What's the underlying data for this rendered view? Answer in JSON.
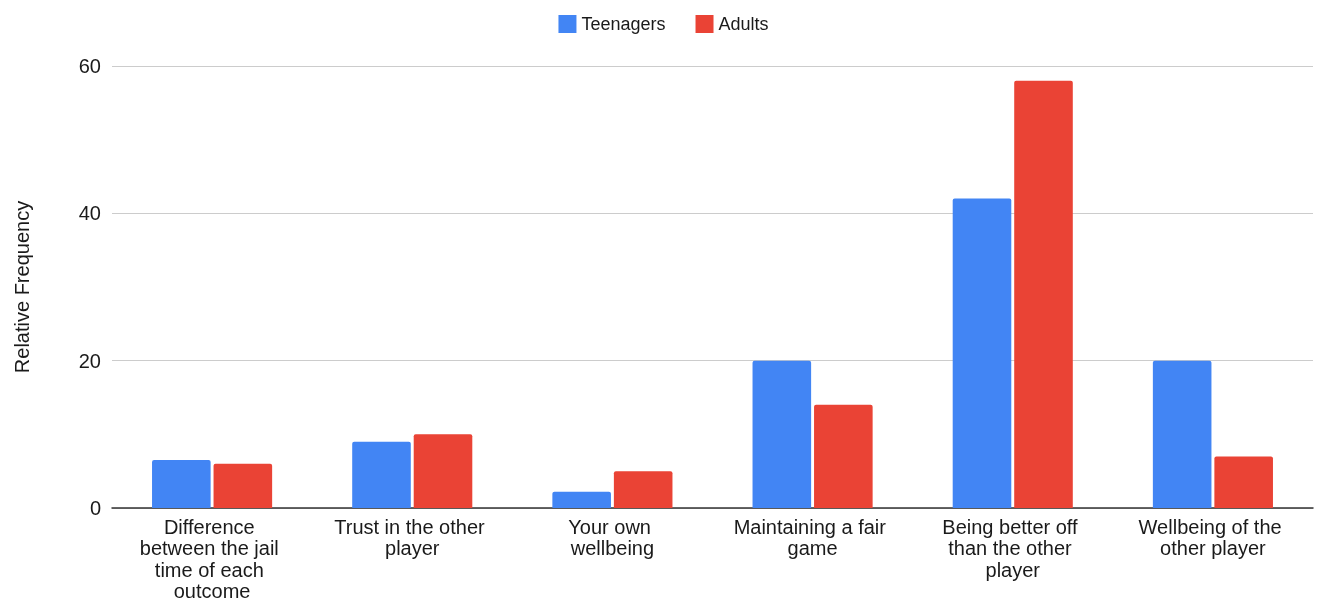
{
  "chart_data": {
    "type": "bar",
    "ylabel": "Relative Frequency",
    "categories": [
      "Difference between the jail time of each outcome",
      "Trust in the other player",
      "Your own wellbeing",
      "Maintaining a fair game",
      "Being better off than the other player",
      "Wellbeing of the other player"
    ],
    "series": [
      {
        "name": "Teenagers",
        "color": "#4285f4",
        "values": [
          6.5,
          9,
          2.2,
          20,
          42,
          20
        ]
      },
      {
        "name": "Adults",
        "color": "#ea4335",
        "values": [
          6,
          10,
          5,
          14,
          58,
          7
        ]
      }
    ],
    "ylim": [
      0,
      60
    ],
    "yticks": [
      0,
      20,
      40,
      60
    ],
    "grid": true,
    "legend": "top"
  }
}
